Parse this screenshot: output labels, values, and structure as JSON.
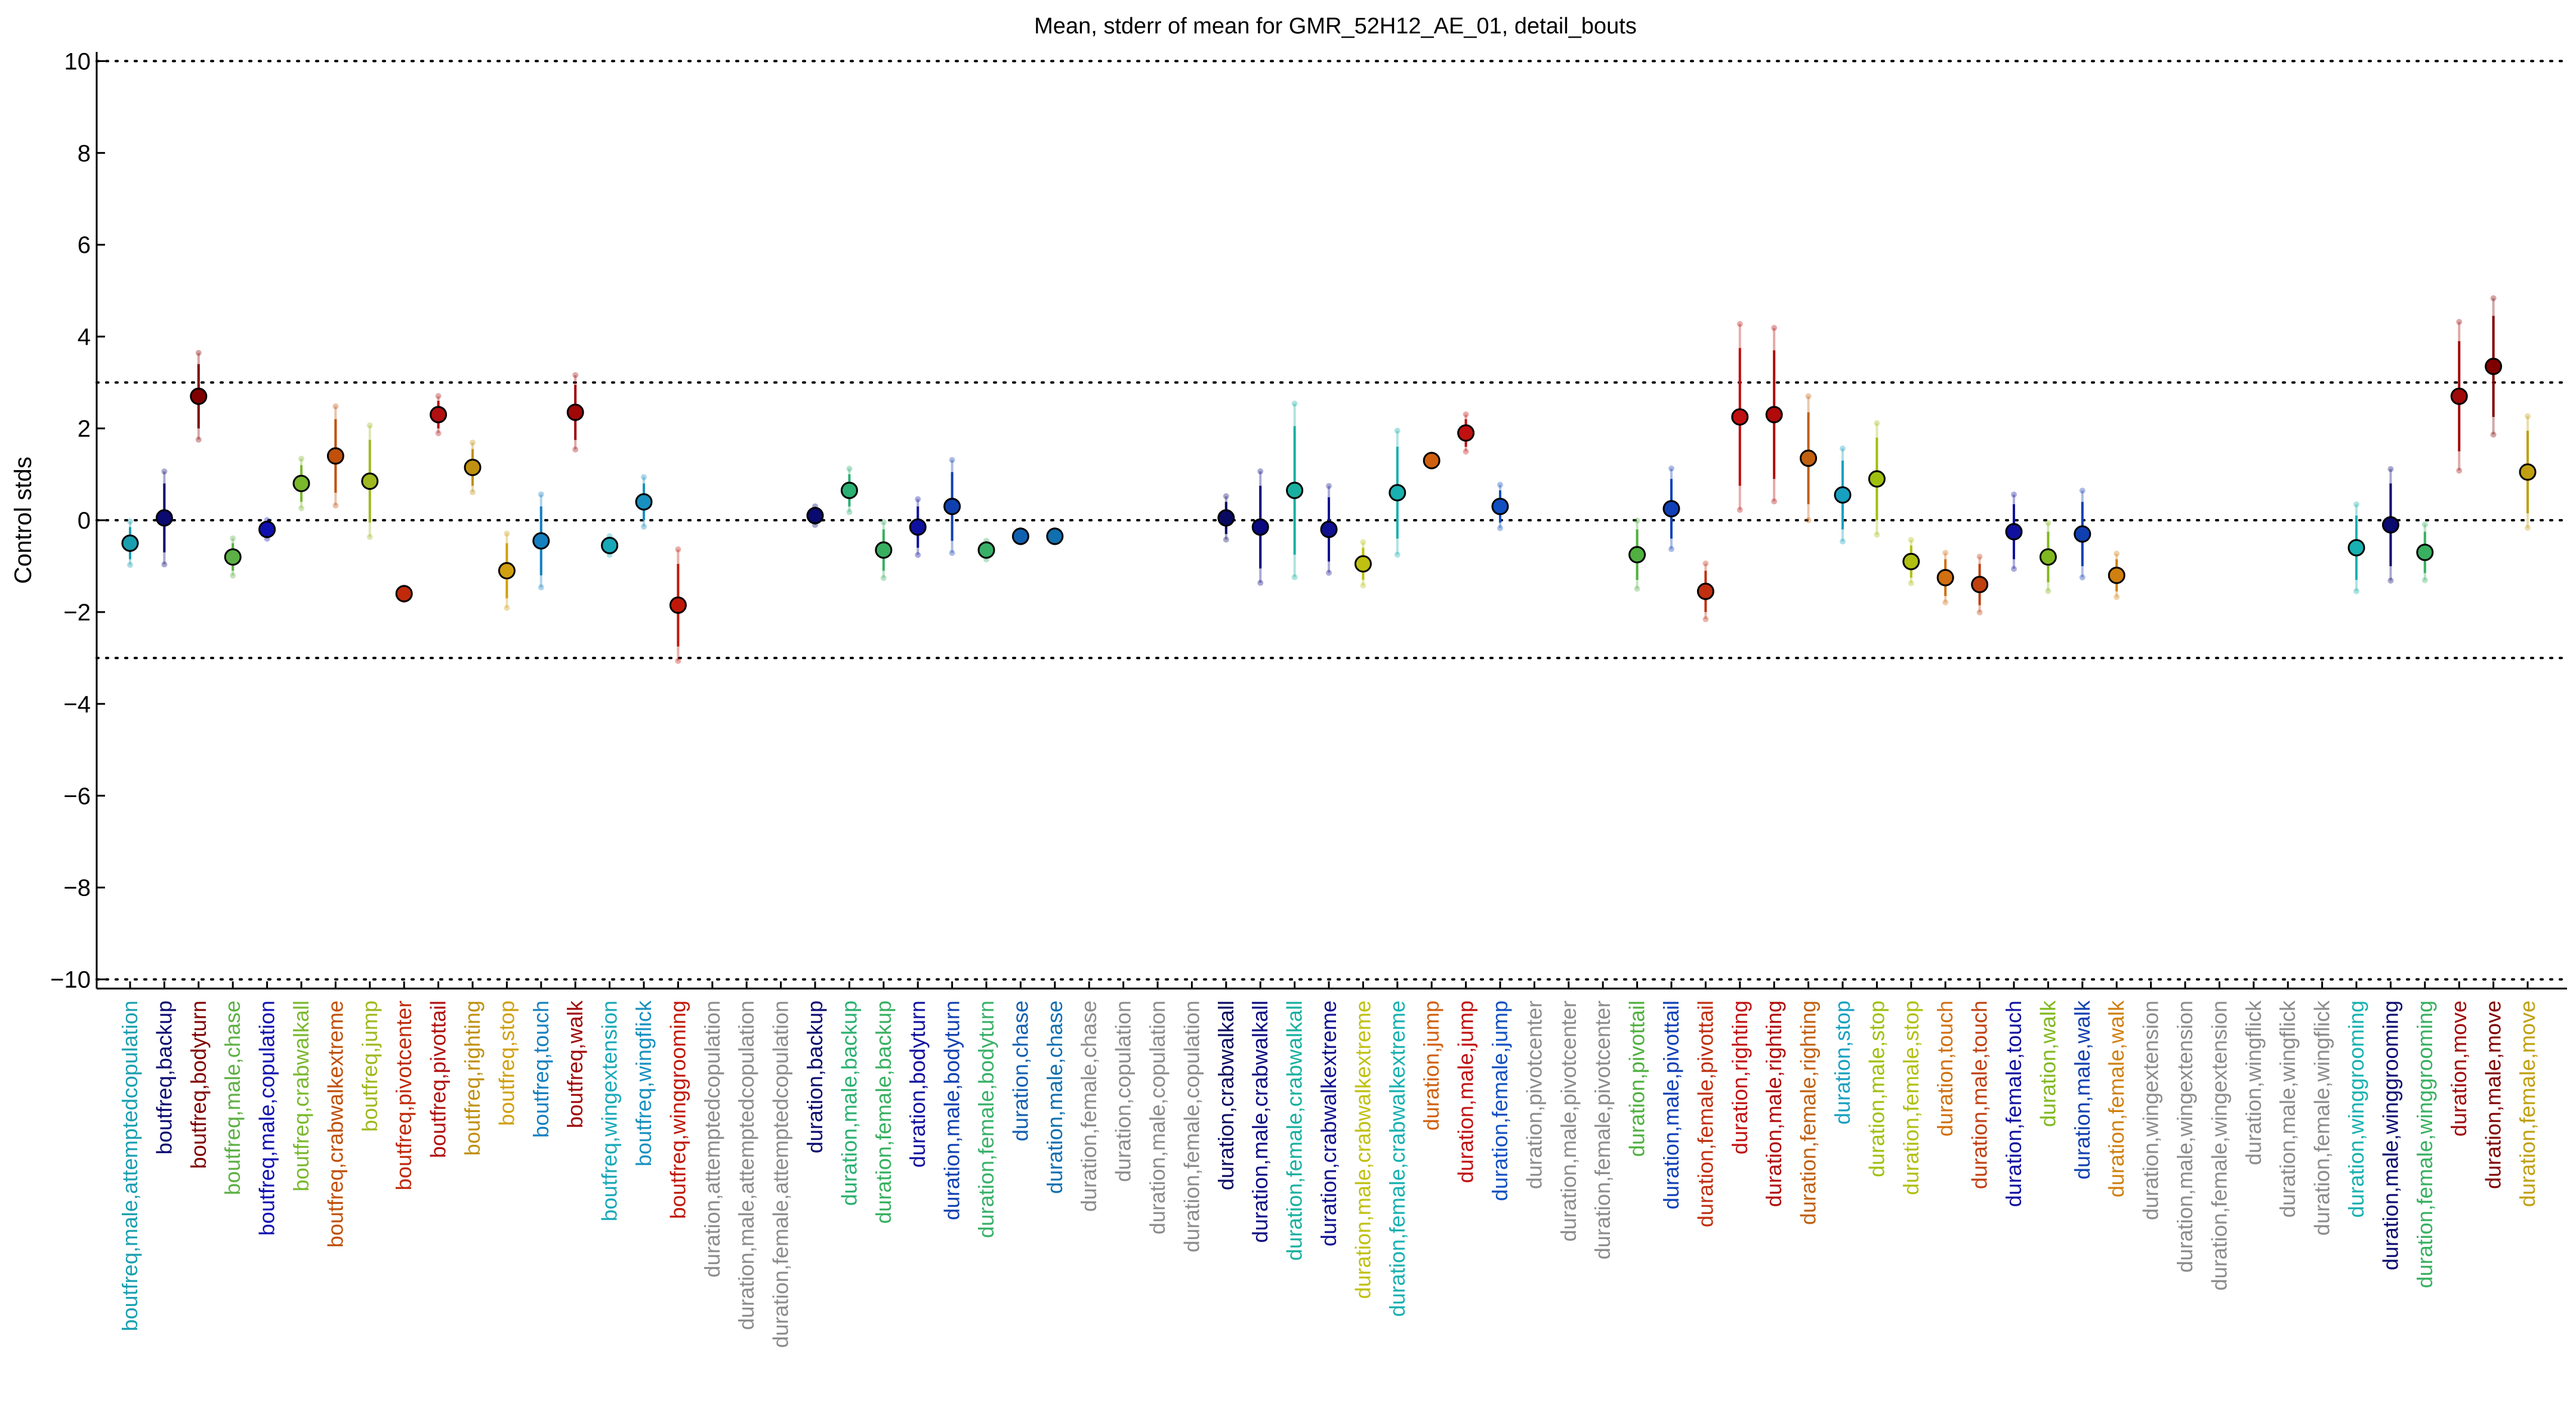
{
  "chart_data": {
    "type": "scatter",
    "title": "Mean, stderr of mean for GMR_52H12_AE_01, detail_bouts",
    "xlabel": "",
    "ylabel": "Control stds",
    "ylim": [
      -10.2,
      10.2
    ],
    "yticks": [
      10,
      8,
      6,
      4,
      2,
      0,
      -2,
      -4,
      -6,
      -8,
      -10
    ],
    "reference_lines": [
      10,
      3,
      0,
      -3,
      -10
    ],
    "grid": false,
    "missing_color": "#8c8c8c",
    "points": [
      {
        "label": "boutfreq,male,attemptedcopulation",
        "y": -0.5,
        "err": 0.35,
        "color": "#1a9fb0"
      },
      {
        "label": "boutfreq,backup",
        "y": 0.05,
        "err": 0.75,
        "color": "#0a0a70"
      },
      {
        "label": "boutfreq,bodyturn",
        "y": 2.7,
        "err": 0.7,
        "color": "#800000"
      },
      {
        "label": "boutfreq,male,chase",
        "y": -0.8,
        "err": 0.3,
        "color": "#5db045"
      },
      {
        "label": "boutfreq,male,copulation",
        "y": -0.2,
        "err": 0.15,
        "color": "#1010b0"
      },
      {
        "label": "boutfreq,crabwalkall",
        "y": 0.8,
        "err": 0.4,
        "color": "#7ab82e"
      },
      {
        "label": "boutfreq,crabwalkextreme",
        "y": 1.4,
        "err": 0.8,
        "color": "#c0500a"
      },
      {
        "label": "boutfreq,jump",
        "y": 0.85,
        "err": 0.9,
        "color": "#a0b820"
      },
      {
        "label": "boutfreq,pivotcenter",
        "y": -1.6,
        "err": 0.1,
        "color": "#c02a0a"
      },
      {
        "label": "boutfreq,pivottail",
        "y": 2.3,
        "err": 0.3,
        "color": "#b01010"
      },
      {
        "label": "boutfreq,righting",
        "y": 1.15,
        "err": 0.4,
        "color": "#c09010"
      },
      {
        "label": "boutfreq,stop",
        "y": -1.1,
        "err": 0.6,
        "color": "#d0a010"
      },
      {
        "label": "boutfreq,touch",
        "y": -0.45,
        "err": 0.75,
        "color": "#1580c0"
      },
      {
        "label": "boutfreq,walk",
        "y": 2.35,
        "err": 0.6,
        "color": "#a00808"
      },
      {
        "label": "boutfreq,wingextension",
        "y": -0.55,
        "err": 0.15,
        "color": "#18a8b8"
      },
      {
        "label": "boutfreq,wingflick",
        "y": 0.4,
        "err": 0.4,
        "color": "#1890c0"
      },
      {
        "label": "boutfreq,winggrooming",
        "y": -1.85,
        "err": 0.9,
        "color": "#c01808"
      },
      {
        "label": "duration,attemptedcopulation",
        "y": null,
        "err": null,
        "color": "#8c8c8c"
      },
      {
        "label": "duration,male,attemptedcopulation",
        "y": null,
        "err": null,
        "color": "#8c8c8c"
      },
      {
        "label": "duration,female,attemptedcopulation",
        "y": null,
        "err": null,
        "color": "#8c8c8c"
      },
      {
        "label": "duration,backup",
        "y": 0.1,
        "err": 0.15,
        "color": "#0a0a70"
      },
      {
        "label": "duration,male,backup",
        "y": 0.65,
        "err": 0.35,
        "color": "#2ab070"
      },
      {
        "label": "duration,female,backup",
        "y": -0.65,
        "err": 0.45,
        "color": "#38b060"
      },
      {
        "label": "duration,bodyturn",
        "y": -0.15,
        "err": 0.45,
        "color": "#1010a0"
      },
      {
        "label": "duration,male,bodyturn",
        "y": 0.3,
        "err": 0.75,
        "color": "#1040b0"
      },
      {
        "label": "duration,female,bodyturn",
        "y": -0.65,
        "err": 0.15,
        "color": "#38b068"
      },
      {
        "label": "duration,chase",
        "y": -0.35,
        "err": 0.1,
        "color": "#1060b0"
      },
      {
        "label": "duration,male,chase",
        "y": -0.35,
        "err": 0.1,
        "color": "#1070b0"
      },
      {
        "label": "duration,female,chase",
        "y": null,
        "err": null,
        "color": "#8c8c8c"
      },
      {
        "label": "duration,copulation",
        "y": null,
        "err": null,
        "color": "#8c8c8c"
      },
      {
        "label": "duration,male,copulation",
        "y": null,
        "err": null,
        "color": "#8c8c8c"
      },
      {
        "label": "duration,female,copulation",
        "y": null,
        "err": null,
        "color": "#8c8c8c"
      },
      {
        "label": "duration,crabwalkall",
        "y": 0.05,
        "err": 0.35,
        "color": "#0a0a60"
      },
      {
        "label": "duration,male,crabwalkall",
        "y": -0.15,
        "err": 0.9,
        "color": "#0a0a80"
      },
      {
        "label": "duration,female,crabwalkall",
        "y": 0.65,
        "err": 1.4,
        "color": "#18b0a0"
      },
      {
        "label": "duration,crabwalkextreme",
        "y": -0.2,
        "err": 0.7,
        "color": "#101090"
      },
      {
        "label": "duration,male,crabwalkextreme",
        "y": -0.95,
        "err": 0.35,
        "color": "#c0c010"
      },
      {
        "label": "duration,female,crabwalkextreme",
        "y": 0.6,
        "err": 1.0,
        "color": "#18b0b0"
      },
      {
        "label": "duration,jump",
        "y": 1.3,
        "err": 0.1,
        "color": "#d06010"
      },
      {
        "label": "duration,male,jump",
        "y": 1.9,
        "err": 0.3,
        "color": "#c01010"
      },
      {
        "label": "duration,female,jump",
        "y": 0.3,
        "err": 0.35,
        "color": "#1050c0"
      },
      {
        "label": "duration,pivotcenter",
        "y": null,
        "err": null,
        "color": "#8c8c8c"
      },
      {
        "label": "duration,male,pivotcenter",
        "y": null,
        "err": null,
        "color": "#8c8c8c"
      },
      {
        "label": "duration,female,pivotcenter",
        "y": null,
        "err": null,
        "color": "#8c8c8c"
      },
      {
        "label": "duration,pivottail",
        "y": -0.75,
        "err": 0.55,
        "color": "#50b040"
      },
      {
        "label": "duration,male,pivottail",
        "y": 0.25,
        "err": 0.65,
        "color": "#1040b8"
      },
      {
        "label": "duration,female,pivottail",
        "y": -1.55,
        "err": 0.45,
        "color": "#c03010"
      },
      {
        "label": "duration,righting",
        "y": 2.25,
        "err": 1.5,
        "color": "#c01010"
      },
      {
        "label": "duration,male,righting",
        "y": 2.3,
        "err": 1.4,
        "color": "#b00a0a"
      },
      {
        "label": "duration,female,righting",
        "y": 1.35,
        "err": 1.0,
        "color": "#c06010"
      },
      {
        "label": "duration,stop",
        "y": 0.55,
        "err": 0.75,
        "color": "#18a0c0"
      },
      {
        "label": "duration,male,stop",
        "y": 0.9,
        "err": 0.9,
        "color": "#a0c010"
      },
      {
        "label": "duration,female,stop",
        "y": -0.9,
        "err": 0.35,
        "color": "#b0c010"
      },
      {
        "label": "duration,touch",
        "y": -1.25,
        "err": 0.4,
        "color": "#d07010"
      },
      {
        "label": "duration,male,touch",
        "y": -1.4,
        "err": 0.45,
        "color": "#c04010"
      },
      {
        "label": "duration,female,touch",
        "y": -0.25,
        "err": 0.6,
        "color": "#1010a0"
      },
      {
        "label": "duration,walk",
        "y": -0.8,
        "err": 0.55,
        "color": "#80b820"
      },
      {
        "label": "duration,male,walk",
        "y": -0.3,
        "err": 0.7,
        "color": "#1040b0"
      },
      {
        "label": "duration,female,walk",
        "y": -1.2,
        "err": 0.35,
        "color": "#d08010"
      },
      {
        "label": "duration,wingextension",
        "y": null,
        "err": null,
        "color": "#8c8c8c"
      },
      {
        "label": "duration,male,wingextension",
        "y": null,
        "err": null,
        "color": "#8c8c8c"
      },
      {
        "label": "duration,female,wingextension",
        "y": null,
        "err": null,
        "color": "#8c8c8c"
      },
      {
        "label": "duration,wingflick",
        "y": null,
        "err": null,
        "color": "#8c8c8c"
      },
      {
        "label": "duration,male,wingflick",
        "y": null,
        "err": null,
        "color": "#8c8c8c"
      },
      {
        "label": "duration,female,wingflick",
        "y": null,
        "err": null,
        "color": "#8c8c8c"
      },
      {
        "label": "duration,winggrooming",
        "y": -0.6,
        "err": 0.7,
        "color": "#18b0b0"
      },
      {
        "label": "duration,male,winggrooming",
        "y": -0.1,
        "err": 0.9,
        "color": "#0a0a70"
      },
      {
        "label": "duration,female,winggrooming",
        "y": -0.7,
        "err": 0.45,
        "color": "#38b060"
      },
      {
        "label": "duration,move",
        "y": 2.7,
        "err": 1.2,
        "color": "#a00a0a"
      },
      {
        "label": "duration,male,move",
        "y": 3.35,
        "err": 1.1,
        "color": "#800000"
      },
      {
        "label": "duration,female,move",
        "y": 1.05,
        "err": 0.9,
        "color": "#c0a010"
      }
    ]
  }
}
